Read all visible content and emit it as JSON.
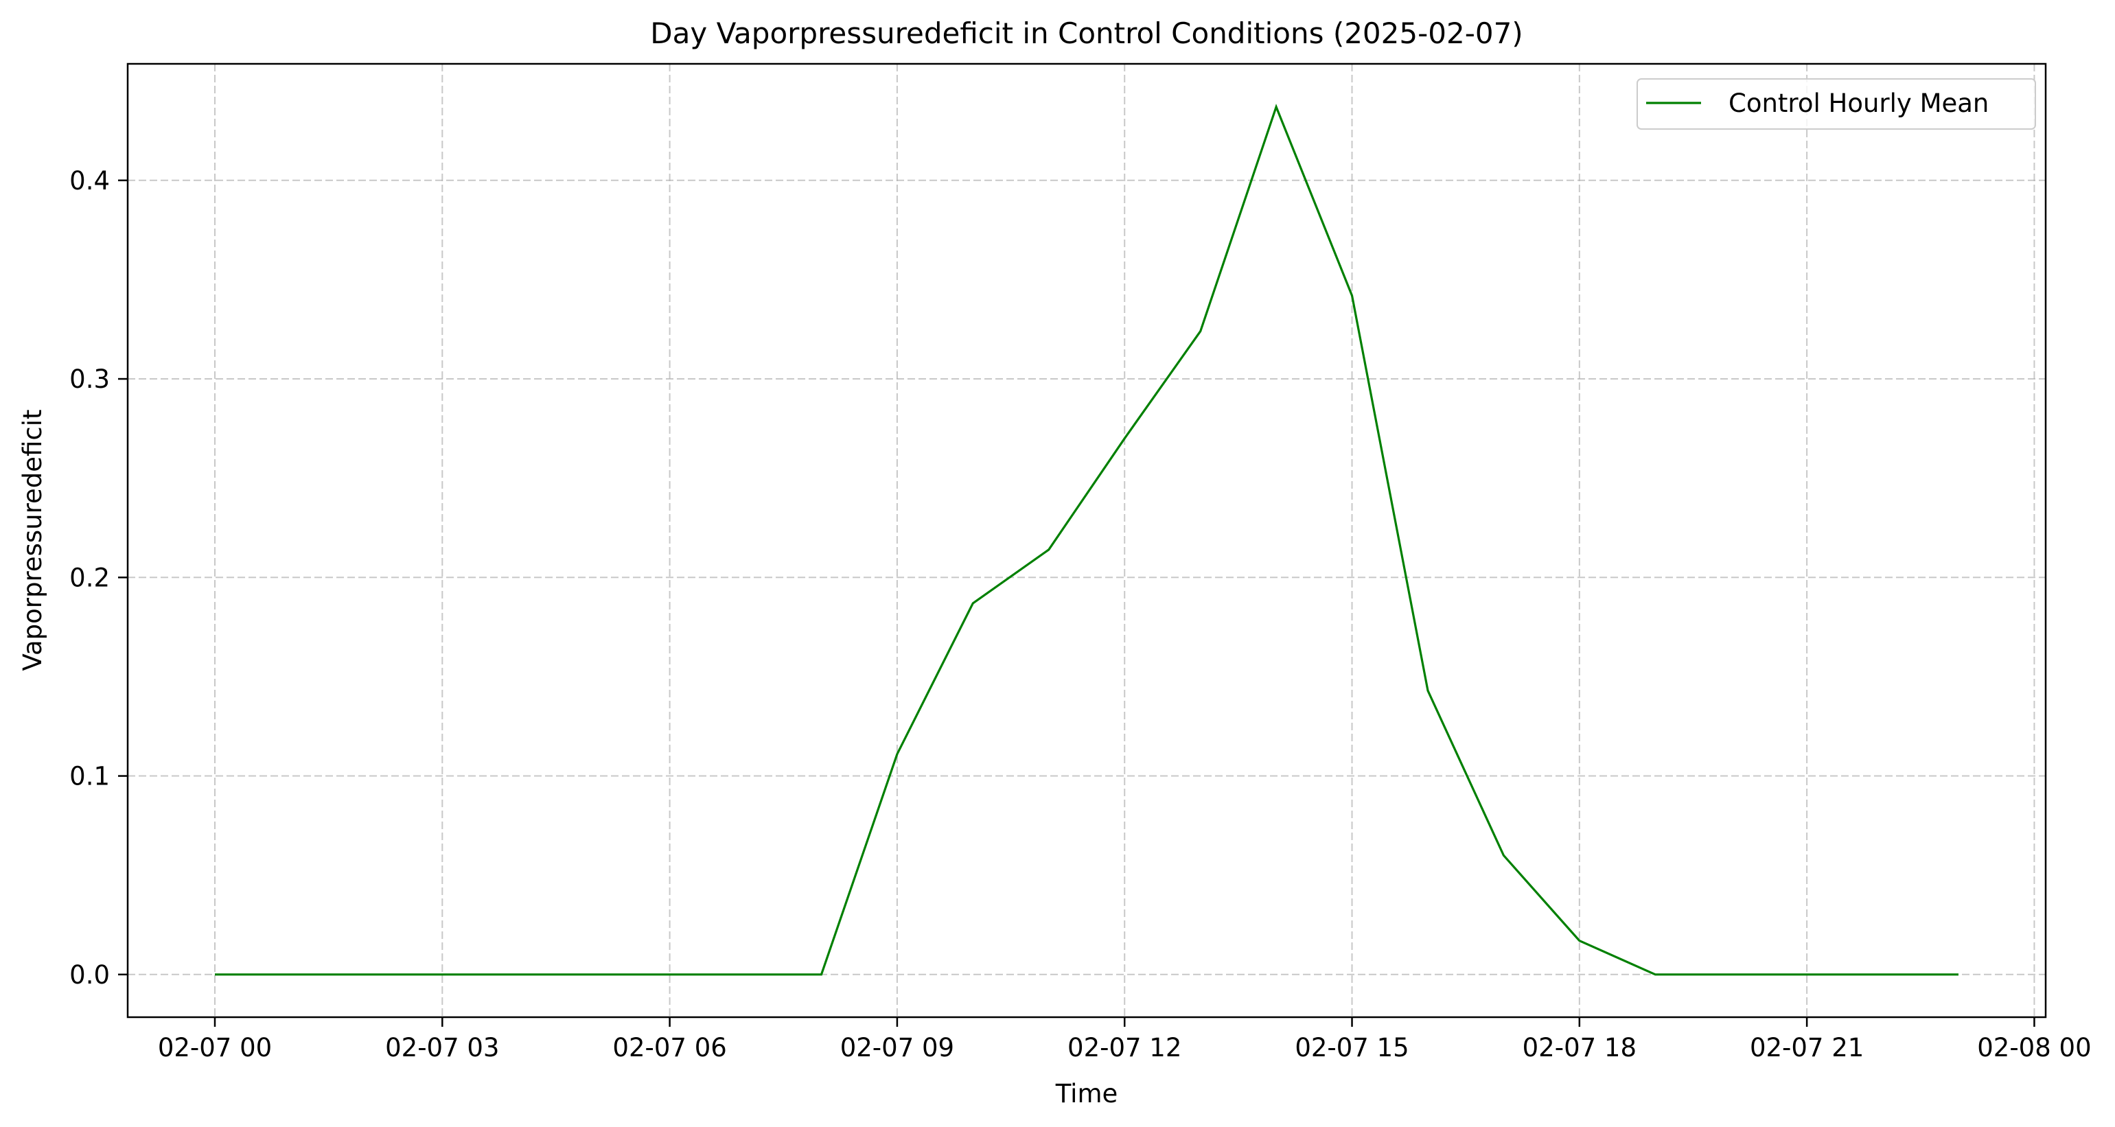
{
  "chart_data": {
    "type": "line",
    "title": "Day Vaporpressuredeficit in Control Conditions (2025-02-07)",
    "xlabel": "Time",
    "ylabel": "Vaporpressuredeficit",
    "x_unit": "hours since 2025-02-07 00:00",
    "xlim": [
      -1.15,
      24.15
    ],
    "ylim": [
      -0.0215,
      0.4587
    ],
    "x_ticks": [
      0,
      3,
      6,
      9,
      12,
      15,
      18,
      21,
      24
    ],
    "x_tick_labels": [
      "02-07 00",
      "02-07 03",
      "02-07 06",
      "02-07 09",
      "02-07 12",
      "02-07 15",
      "02-07 18",
      "02-07 21",
      "02-08 00"
    ],
    "y_ticks": [
      0.0,
      0.1,
      0.2,
      0.3,
      0.4
    ],
    "y_tick_labels": [
      "0.0",
      "0.1",
      "0.2",
      "0.3",
      "0.4"
    ],
    "grid": true,
    "legend_position": "top-right",
    "series": [
      {
        "name": "Control Hourly Mean",
        "color": "#008000",
        "x": [
          0,
          1,
          2,
          3,
          4,
          5,
          6,
          7,
          8,
          9,
          10,
          11,
          12,
          13,
          14,
          15,
          16,
          17,
          18,
          19,
          20,
          21,
          22,
          23
        ],
        "values": [
          0,
          0,
          0,
          0,
          0,
          0,
          0,
          0,
          0,
          0.111,
          0.187,
          0.214,
          0.27,
          0.324,
          0.437,
          0.342,
          0.143,
          0.06,
          0.017,
          0,
          0,
          0,
          0,
          0
        ]
      }
    ]
  }
}
